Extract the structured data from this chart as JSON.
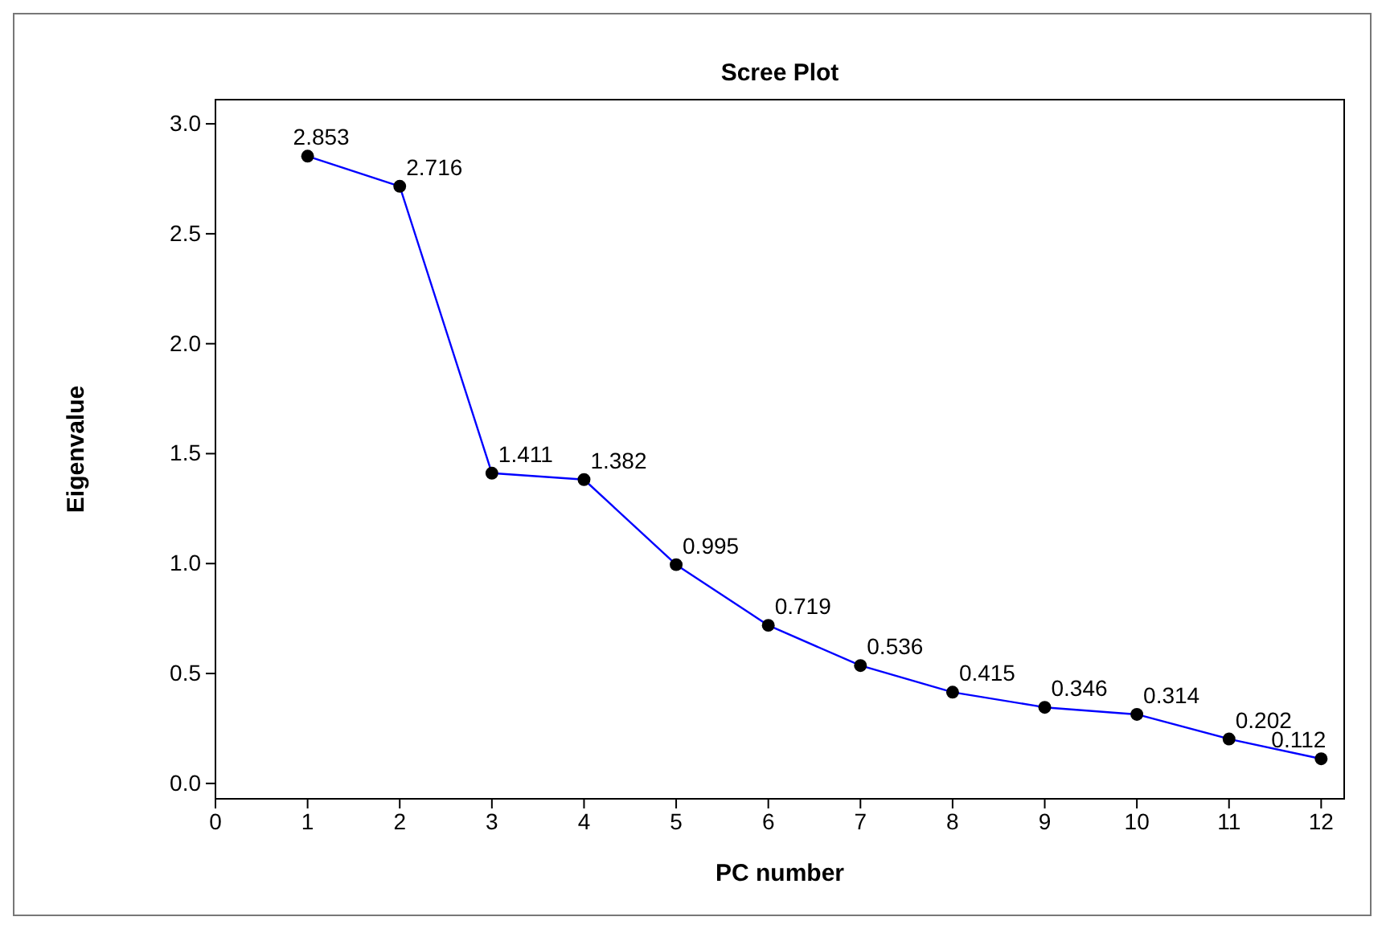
{
  "chart_data": {
    "type": "line",
    "title": "Scree Plot",
    "xlabel": "PC number",
    "ylabel": "Eigenvalue",
    "x": [
      1,
      2,
      3,
      4,
      5,
      6,
      7,
      8,
      9,
      10,
      11,
      12
    ],
    "series": [
      {
        "color": "#0000ff",
        "values": [
          2.853,
          2.716,
          1.411,
          1.382,
          0.995,
          0.719,
          0.536,
          0.415,
          0.346,
          0.314,
          0.202,
          0.112
        ]
      }
    ],
    "xlim": [
      0,
      12.25
    ],
    "xticks": [
      0,
      1,
      2,
      3,
      4,
      5,
      6,
      7,
      8,
      9,
      10,
      11,
      12
    ],
    "ylim": [
      -0.07,
      3.11
    ],
    "yticks": [
      {
        "value": 0,
        "label": "0.0"
      },
      {
        "value": 0.5,
        "label": "0.5"
      },
      {
        "value": 1,
        "label": "1.0"
      },
      {
        "value": 1.5,
        "label": "1.5"
      },
      {
        "value": 2,
        "label": "2.0"
      },
      {
        "value": 2.5,
        "label": "2.5"
      },
      {
        "value": 3,
        "label": "3.0"
      }
    ],
    "marker": "circle",
    "line_style": "solid",
    "data_labels": true
  }
}
